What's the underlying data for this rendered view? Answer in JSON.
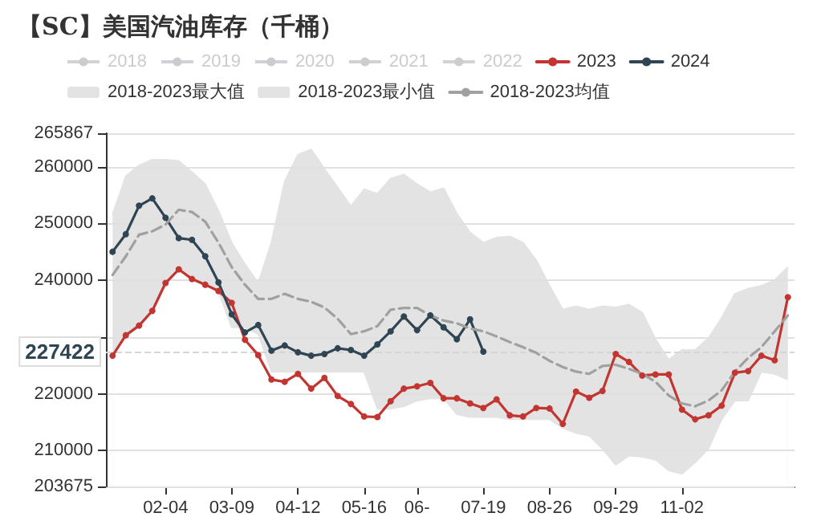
{
  "chart_data": {
    "type": "line",
    "title": "【SC】美国汽油库存（千桶）",
    "categories": [
      null,
      null,
      null,
      null,
      "02-04",
      null,
      null,
      null,
      null,
      "03-09",
      null,
      null,
      null,
      null,
      "04-12",
      null,
      null,
      null,
      null,
      "05-16",
      null,
      null,
      null,
      "06-",
      null,
      null,
      null,
      null,
      "07-19",
      null,
      null,
      null,
      null,
      "08-26",
      null,
      null,
      null,
      null,
      "09-29",
      null,
      null,
      null,
      null,
      "11-02",
      null,
      null,
      null,
      null,
      null,
      null,
      null,
      null
    ],
    "series": [
      {
        "name": "2018",
        "color": "#cccccc",
        "values": [
          null,
          null,
          null,
          null,
          null,
          null,
          null,
          null,
          null,
          null,
          null,
          null,
          null,
          null,
          null,
          null,
          null,
          null,
          null,
          null,
          null,
          null,
          null,
          null,
          null,
          null,
          null,
          null,
          null,
          null,
          null,
          null,
          null,
          null,
          null,
          null,
          null,
          null,
          null,
          null,
          null,
          null,
          null,
          null,
          null,
          null,
          null,
          null,
          null,
          null,
          null,
          null
        ]
      },
      {
        "name": "2019",
        "color": "#cccccc",
        "values": [
          null,
          null,
          null,
          null,
          null,
          null,
          null,
          null,
          null,
          null,
          null,
          null,
          null,
          null,
          null,
          null,
          null,
          null,
          null,
          null,
          null,
          null,
          null,
          null,
          null,
          null,
          null,
          null,
          null,
          null,
          null,
          null,
          null,
          null,
          null,
          null,
          null,
          null,
          null,
          null,
          null,
          null,
          null,
          null,
          null,
          null,
          null,
          null,
          null,
          null,
          null,
          null
        ]
      },
      {
        "name": "2020",
        "color": "#cccccc",
        "values": [
          null,
          null,
          null,
          null,
          null,
          null,
          null,
          null,
          null,
          null,
          null,
          null,
          null,
          null,
          null,
          null,
          null,
          null,
          null,
          null,
          null,
          null,
          null,
          null,
          null,
          null,
          null,
          null,
          null,
          null,
          null,
          null,
          null,
          null,
          null,
          null,
          null,
          null,
          null,
          null,
          null,
          null,
          null,
          null,
          null,
          null,
          null,
          null,
          null,
          null,
          null,
          null
        ]
      },
      {
        "name": "2021",
        "color": "#cccccc",
        "values": [
          null,
          null,
          null,
          null,
          null,
          null,
          null,
          null,
          null,
          null,
          null,
          null,
          null,
          null,
          null,
          null,
          null,
          null,
          null,
          null,
          null,
          null,
          null,
          null,
          null,
          null,
          null,
          null,
          null,
          null,
          null,
          null,
          null,
          null,
          null,
          null,
          null,
          null,
          null,
          null,
          null,
          null,
          null,
          null,
          null,
          null,
          null,
          null,
          null,
          null,
          null,
          null
        ]
      },
      {
        "name": "2022",
        "color": "#cccccc",
        "values": [
          null,
          null,
          null,
          null,
          null,
          null,
          null,
          null,
          null,
          null,
          null,
          null,
          null,
          null,
          null,
          null,
          null,
          null,
          null,
          null,
          null,
          null,
          null,
          null,
          null,
          null,
          null,
          null,
          null,
          null,
          null,
          null,
          null,
          null,
          null,
          null,
          null,
          null,
          null,
          null,
          null,
          null,
          null,
          null,
          null,
          null,
          null,
          null,
          null,
          null,
          null,
          null
        ]
      },
      {
        "name": "2023",
        "color": "#c23531",
        "values": [
          226700,
          230300,
          232000,
          234600,
          239500,
          241900,
          240200,
          239200,
          238100,
          236000,
          229500,
          226800,
          222500,
          222100,
          223500,
          220900,
          222800,
          219600,
          218200,
          216000,
          215900,
          218700,
          220900,
          221300,
          221900,
          219200,
          219200,
          218300,
          217500,
          219000,
          216200,
          216000,
          217500,
          217400,
          214700,
          220400,
          219300,
          220500,
          227000,
          225600,
          223200,
          223400,
          223400,
          217200,
          215500,
          216200,
          217900,
          223700,
          224000,
          226700,
          225900,
          237000
        ]
      },
      {
        "name": "2024",
        "color": "#2f4554",
        "values": [
          245000,
          248100,
          253100,
          254400,
          251000,
          247400,
          247100,
          244200,
          239600,
          234000,
          230800,
          232100,
          227600,
          228500,
          227300,
          226700,
          227000,
          228000,
          227700,
          226700,
          228700,
          231000,
          233600,
          231200,
          233800,
          231700,
          229600,
          233100,
          227422,
          null,
          null,
          null,
          null,
          null,
          null,
          null,
          null,
          null,
          null,
          null,
          null,
          null,
          null,
          null,
          null,
          null,
          null,
          null,
          null,
          null,
          null,
          null
        ]
      },
      {
        "name": "2018-2023最大值",
        "type": "area",
        "color": "#e3e3e3",
        "marker": "none",
        "values": [
          251500,
          258300,
          260200,
          261200,
          261200,
          261000,
          259000,
          256900,
          252200,
          246600,
          242800,
          239500,
          246600,
          257400,
          262100,
          263000,
          259600,
          256300,
          253000,
          256000,
          255200,
          257900,
          258600,
          256900,
          255500,
          256200,
          251700,
          248400,
          246600,
          247500,
          247700,
          246600,
          243500,
          239000,
          234800,
          235400,
          234800,
          235400,
          235200,
          235700,
          234300,
          229600,
          226000,
          227700,
          227700,
          229800,
          233400,
          237600,
          238500,
          239000,
          240000,
          242300
        ]
      },
      {
        "name": "2018-2023最小值",
        "type": "area",
        "color": "#e3e3e3",
        "marker": "none",
        "values": [
          226700,
          230300,
          231900,
          234500,
          239400,
          241900,
          240100,
          239200,
          238000,
          231700,
          231700,
          230500,
          223900,
          223900,
          223900,
          223900,
          223900,
          223900,
          223900,
          223900,
          217400,
          217400,
          217800,
          218800,
          219200,
          219200,
          216400,
          215900,
          215900,
          215900,
          215500,
          215500,
          215500,
          215500,
          214000,
          213100,
          212600,
          210300,
          207500,
          209100,
          208900,
          208400,
          206500,
          205900,
          207900,
          210300,
          215500,
          218800,
          218800,
          223900,
          223500,
          222500
        ]
      },
      {
        "name": "2018-2023均值",
        "color": "#a0a0a0",
        "line_style": "dashed",
        "marker": "none",
        "values": [
          240900,
          244200,
          248000,
          248600,
          249800,
          252400,
          252000,
          250300,
          246600,
          242300,
          239200,
          236700,
          236700,
          237600,
          236700,
          236200,
          235200,
          233200,
          230500,
          231000,
          231900,
          234800,
          235100,
          235100,
          233800,
          232900,
          232400,
          231500,
          231000,
          230100,
          229100,
          228200,
          227200,
          225800,
          224700,
          223900,
          223500,
          224900,
          225100,
          224400,
          223500,
          222100,
          219700,
          218300,
          217800,
          218800,
          220600,
          223900,
          226300,
          228200,
          231000,
          233800
        ]
      }
    ],
    "ylim": [
      203675,
      265867
    ],
    "yticks": [
      203675,
      210000,
      220000,
      {
        "value": 230000,
        "label": null
      },
      240000,
      250000,
      260000,
      265867
    ],
    "ref_lines": [
      {
        "axis": "y",
        "value": 227422,
        "label": "227422",
        "color": "#d6d6d6",
        "line_style": "dashed"
      }
    ],
    "grid": "y",
    "legend": "top",
    "marker": "circle"
  }
}
